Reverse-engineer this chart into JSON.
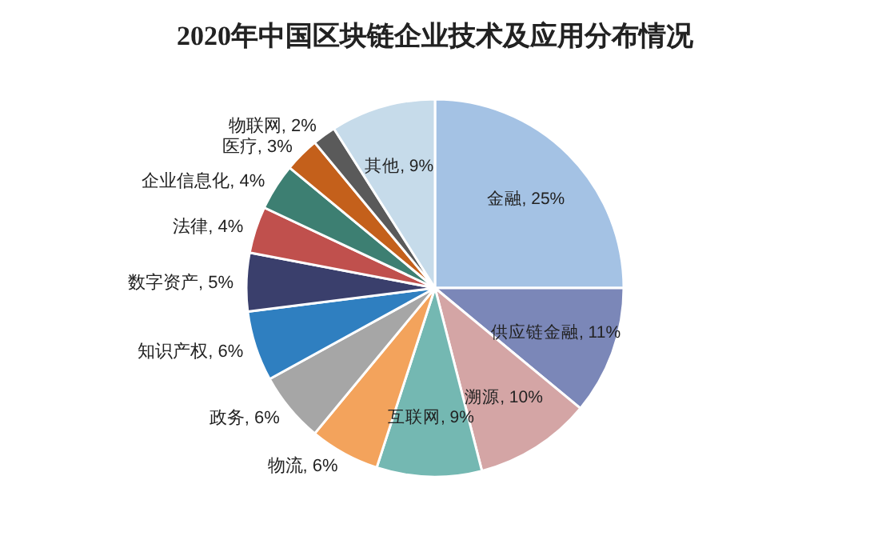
{
  "chart_data": {
    "type": "pie",
    "title": "2020年中国区块链企业技术及应用分布情况",
    "categories": [
      "金融",
      "供应链金融",
      "溯源",
      "互联网",
      "物流",
      "政务",
      "知识产权",
      "数字资产",
      "法律",
      "企业信息化",
      "医疗",
      "物联网",
      "其他"
    ],
    "values": [
      25,
      11,
      10,
      9,
      6,
      6,
      6,
      5,
      4,
      4,
      3,
      2,
      9
    ],
    "value_labels": [
      "25%",
      "11%",
      "10%",
      "9%",
      "6%",
      "6%",
      "6%",
      "5%",
      "4%",
      "4%",
      "3%",
      "2%",
      "9%"
    ],
    "colors": [
      "#a4c2e4",
      "#7b87b8",
      "#d4a5a5",
      "#74b8b2",
      "#f3a35c",
      "#a6a6a6",
      "#2f7fc0",
      "#3a3f6c",
      "#c0504d",
      "#3d7f72",
      "#c4601b",
      "#5a5a5a",
      "#c6dbea"
    ]
  }
}
